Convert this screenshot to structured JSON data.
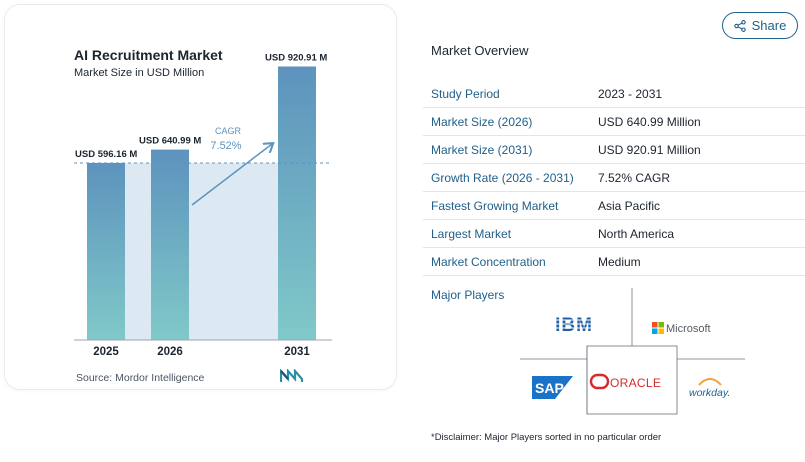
{
  "chart_data": {
    "type": "bar",
    "title": "AI Recruitment Market",
    "subtitle": "Market Size in USD Million",
    "categories": [
      "2025",
      "2026",
      "2031"
    ],
    "values": [
      596.16,
      640.99,
      920.91
    ],
    "value_labels": [
      "USD 596.16 M",
      "USD 640.99 M",
      "USD 920.91 M"
    ],
    "ylim": [
      0,
      1000
    ],
    "xlabel": "",
    "ylabel": "",
    "grid": false,
    "cagr": {
      "label": "CAGR",
      "value": "7.52%"
    },
    "reference_line_value": 596.16
  },
  "source": "Source: Mordor Intelligence",
  "share": {
    "label": "Share",
    "icon": "share-icon"
  },
  "overview": {
    "title": "Market Overview",
    "rows": [
      {
        "key": "Study Period",
        "value": "2023 - 2031"
      },
      {
        "key": "Market Size (2026)",
        "value": "USD 640.99 Million"
      },
      {
        "key": "Market Size (2031)",
        "value": "USD 920.91 Million"
      },
      {
        "key": "Growth Rate (2026 - 2031)",
        "value": "7.52% CAGR"
      },
      {
        "key": "Fastest Growing Market",
        "value": "Asia Pacific"
      },
      {
        "key": "Largest Market",
        "value": "North America"
      },
      {
        "key": "Market Concentration",
        "value": "Medium"
      }
    ]
  },
  "major_players": {
    "title": "Major Players",
    "logos": [
      "IBM",
      "Microsoft",
      "SAP",
      "ORACLE",
      "workday."
    ]
  },
  "disclaimer": "*Disclaimer: Major Players sorted in no particular order",
  "colors": {
    "accent": "#1f5f8b",
    "bar_top": "#5d93bd",
    "bar_bottom": "#7fc8c8",
    "area": "#dde9f2",
    "arrow": "#5d93bd",
    "oracle": "#d22d2d",
    "sap": "#1a73c7",
    "workday_orange": "#f2a23c"
  }
}
